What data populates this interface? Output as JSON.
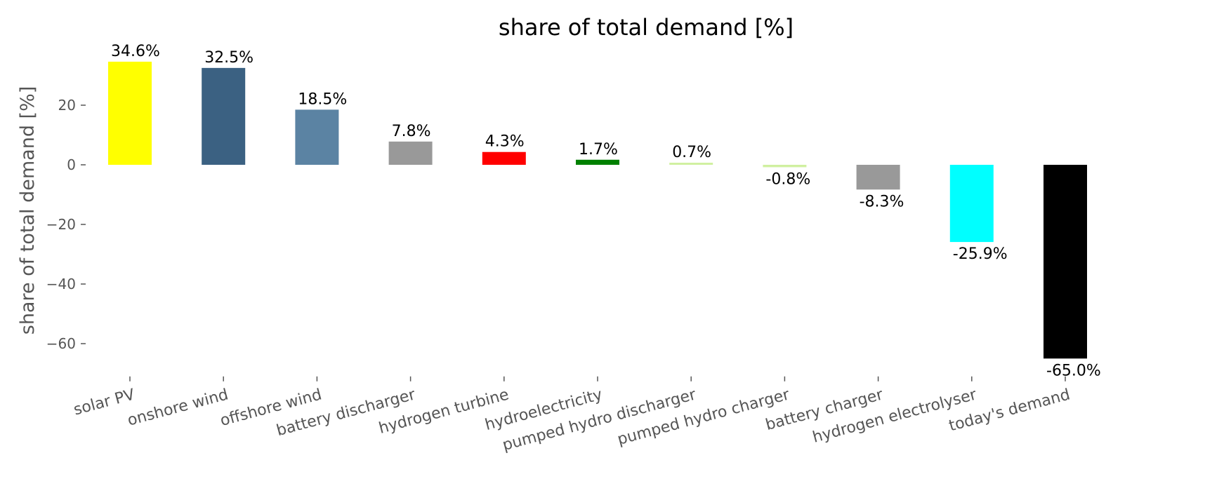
{
  "chart_data": {
    "type": "bar",
    "title": "share of total demand [%]",
    "xlabel": "",
    "ylabel": "share of total demand [%]",
    "ylim": [
      -71,
      38
    ],
    "yticks": [
      20,
      0,
      -20,
      -40,
      -60
    ],
    "grid": false,
    "categories": [
      "solar PV",
      "onshore wind",
      "offshore wind",
      "battery discharger",
      "hydrogen turbine",
      "hydroelectricity",
      "pumped hydro discharger",
      "pumped hydro charger",
      "battery charger",
      "hydrogen electrolyser",
      "today's demand"
    ],
    "values": [
      34.6,
      32.5,
      18.5,
      7.8,
      4.3,
      1.7,
      0.7,
      -0.8,
      -8.3,
      -25.9,
      -65.0
    ],
    "labels": [
      "34.6%",
      "32.5%",
      "18.5%",
      "7.8%",
      "4.3%",
      "1.7%",
      "0.7%",
      "-0.8%",
      "-8.3%",
      "-25.9%",
      "-65.0%"
    ],
    "colors": [
      "#ffff00",
      "#3b6182",
      "#5b83a3",
      "#999999",
      "#ff0000",
      "#008000",
      "#d0f0a0",
      "#d0f0a0",
      "#999999",
      "#00ffff",
      "#000000"
    ]
  }
}
